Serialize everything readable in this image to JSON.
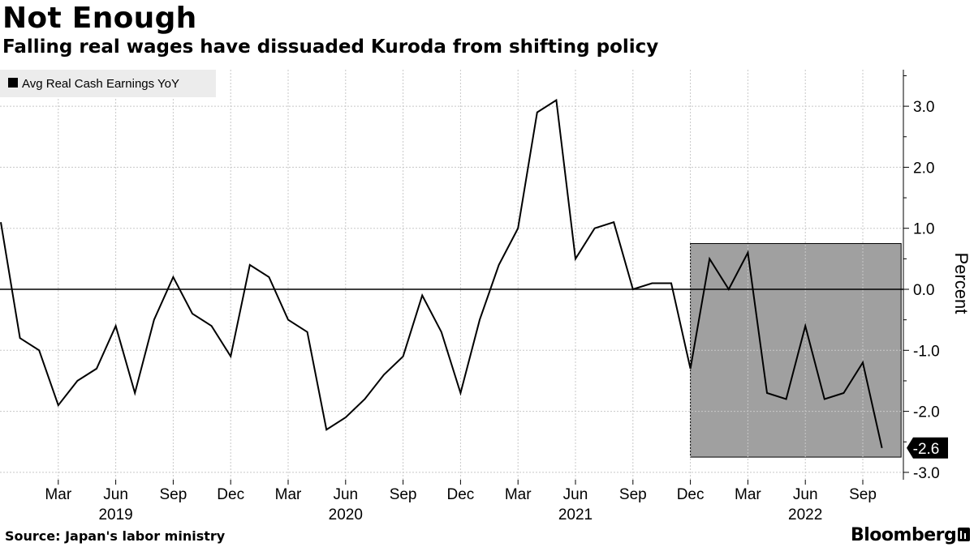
{
  "header": {
    "title": "Not Enough",
    "subtitle": "Falling real wages have dissuaded Kuroda from shifting policy"
  },
  "footer": {
    "source": "Source: Japan's labor ministry",
    "brand": "Bloomberg"
  },
  "chart_data": {
    "type": "line",
    "title": "Not Enough",
    "subtitle": "Falling real wages have dissuaded Kuroda from shifting policy",
    "ylabel": "Percent",
    "xlabel": "",
    "ylim": [
      -3.3,
      3.6
    ],
    "y_ticks": [
      "3.0",
      "2.0",
      "1.0",
      "0.0",
      "-1.0",
      "-2.0",
      "-3.0"
    ],
    "y_tick_values": [
      3,
      2,
      1,
      0,
      -1,
      -2,
      -3
    ],
    "x_ticks": [
      "Mar",
      "Jun",
      "Sep",
      "Dec",
      "Mar",
      "Jun",
      "Sep",
      "Dec",
      "Mar",
      "Jun",
      "Sep",
      "Dec",
      "Mar",
      "Jun",
      "Sep"
    ],
    "x_tick_dates": [
      "2019-03",
      "2019-06",
      "2019-09",
      "2019-12",
      "2020-03",
      "2020-06",
      "2020-09",
      "2020-12",
      "2021-03",
      "2021-06",
      "2021-09",
      "2021-12",
      "2022-03",
      "2022-06",
      "2022-09"
    ],
    "year_labels": [
      "2019",
      "2020",
      "2021",
      "2022"
    ],
    "year_label_dates": [
      "2019-06",
      "2020-06",
      "2021-06",
      "2022-06"
    ],
    "grid": true,
    "zero_line": true,
    "legend": {
      "position": "top-left",
      "entries": [
        "Avg Real Cash Earnings YoY"
      ]
    },
    "series": [
      {
        "name": "Avg Real Cash Earnings YoY",
        "color": "#000000",
        "x": [
          "2018-12",
          "2019-01",
          "2019-02",
          "2019-03",
          "2019-04",
          "2019-05",
          "2019-06",
          "2019-07",
          "2019-08",
          "2019-09",
          "2019-10",
          "2019-11",
          "2019-12",
          "2020-01",
          "2020-02",
          "2020-03",
          "2020-04",
          "2020-05",
          "2020-06",
          "2020-07",
          "2020-08",
          "2020-09",
          "2020-10",
          "2020-11",
          "2020-12",
          "2021-01",
          "2021-02",
          "2021-03",
          "2021-04",
          "2021-05",
          "2021-06",
          "2021-07",
          "2021-08",
          "2021-09",
          "2021-10",
          "2021-11",
          "2021-12",
          "2022-01",
          "2022-02",
          "2022-03",
          "2022-04",
          "2022-05",
          "2022-06",
          "2022-07",
          "2022-08",
          "2022-09",
          "2022-10"
        ],
        "values": [
          1.1,
          -0.8,
          -1.0,
          -1.9,
          -1.5,
          -1.3,
          -0.6,
          -1.7,
          -0.5,
          0.2,
          -0.4,
          -0.6,
          -1.1,
          0.4,
          0.2,
          -0.5,
          -0.7,
          -2.3,
          -2.1,
          -1.8,
          -1.4,
          -1.1,
          -0.1,
          -0.7,
          -1.7,
          -0.5,
          0.4,
          1.0,
          2.9,
          3.1,
          0.5,
          1.0,
          1.1,
          0.0,
          0.1,
          0.1,
          -1.3,
          0.5,
          0.0,
          0.6,
          -1.7,
          -1.8,
          -0.6,
          -1.8,
          -1.7,
          -1.2,
          -2.6
        ]
      }
    ],
    "last_value_label": "-2.6",
    "highlight_region": {
      "x_start": "2021-12",
      "x_end": "2022-11",
      "y_start": -2.75,
      "y_end": 0.75,
      "color": "#a0a0a0"
    }
  }
}
